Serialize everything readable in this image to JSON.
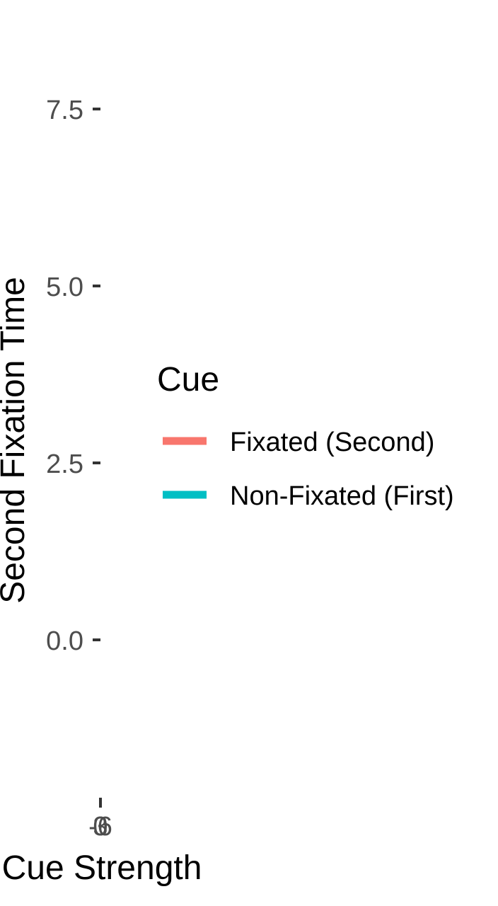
{
  "chart_data": {
    "type": "line",
    "title": "",
    "xlabel": "Cue Strength",
    "ylabel": "Second Fixation Time",
    "y_ticks": [
      "0.0",
      "2.5",
      "5.0",
      "7.5"
    ],
    "y_tick_values": [
      0.0,
      2.5,
      5.0,
      7.5
    ],
    "x_ticks": [
      "-6",
      "0",
      "3"
    ],
    "x_tick_values": [
      -6,
      0,
      3
    ],
    "grid": false,
    "legend": {
      "title": "Cue",
      "placement": "right",
      "entries": [
        {
          "label": "Fixated (Second)",
          "color": "#F8766D"
        },
        {
          "label": "Non-Fixated (First)",
          "color": "#00BFC4"
        }
      ]
    },
    "series": [
      {
        "name": "Fixated (Second)",
        "color": "#F8766D",
        "x": [],
        "y": []
      },
      {
        "name": "Non-Fixated (First)",
        "color": "#00BFC4",
        "x": [],
        "y": []
      }
    ]
  }
}
